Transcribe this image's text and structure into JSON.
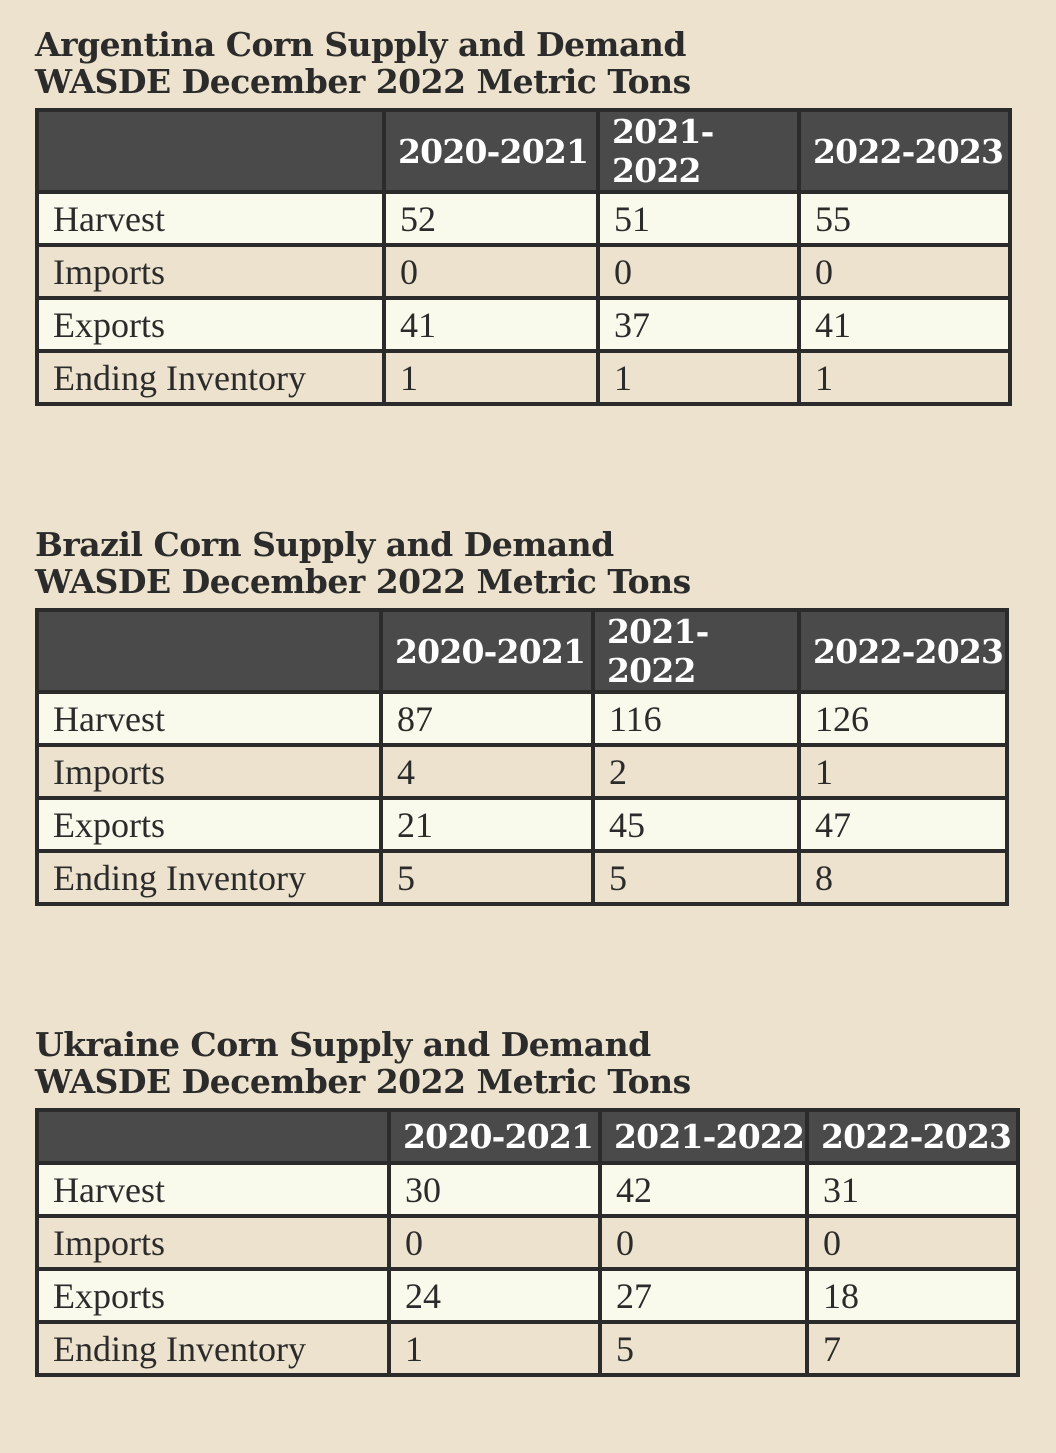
{
  "tables": [
    {
      "title_line1": "Argentina Corn Supply and Demand",
      "title_line2": "WASDE December 2022 Metric Tons",
      "columns": [
        "2020-2021",
        "2021-2022",
        "2022-2023"
      ],
      "rows": [
        {
          "label": "Harvest",
          "values": [
            "52",
            "51",
            "55"
          ]
        },
        {
          "label": "Imports",
          "values": [
            "0",
            "0",
            "0"
          ]
        },
        {
          "label": "Exports",
          "values": [
            "41",
            "37",
            "41"
          ]
        },
        {
          "label": "Ending Inventory",
          "values": [
            "1",
            "1",
            "1"
          ]
        }
      ]
    },
    {
      "title_line1": "Brazil Corn Supply and Demand",
      "title_line2": "WASDE December 2022 Metric Tons",
      "columns": [
        "2020-2021",
        "2021-2022",
        "2022-2023"
      ],
      "rows": [
        {
          "label": "Harvest",
          "values": [
            "87",
            "116",
            "126"
          ]
        },
        {
          "label": "Imports",
          "values": [
            "4",
            "2",
            "1"
          ]
        },
        {
          "label": "Exports",
          "values": [
            "21",
            "45",
            "47"
          ]
        },
        {
          "label": "Ending Inventory",
          "values": [
            "5",
            "5",
            "8"
          ]
        }
      ]
    },
    {
      "title_line1": "Ukraine Corn Supply and Demand",
      "title_line2": "WASDE December 2022 Metric Tons",
      "columns": [
        "2020-2021",
        "2021-2022",
        "2022-2023"
      ],
      "rows": [
        {
          "label": "Harvest",
          "values": [
            "30",
            "42",
            "31"
          ]
        },
        {
          "label": "Imports",
          "values": [
            "0",
            "0",
            "0"
          ]
        },
        {
          "label": "Exports",
          "values": [
            "24",
            "27",
            "18"
          ]
        },
        {
          "label": "Ending Inventory",
          "values": [
            "1",
            "5",
            "7"
          ]
        }
      ]
    }
  ],
  "colors": {
    "background": "#ece2cd",
    "header": "#4a4a4a",
    "row_light": "#fafaec",
    "border": "#2b2b2b"
  }
}
